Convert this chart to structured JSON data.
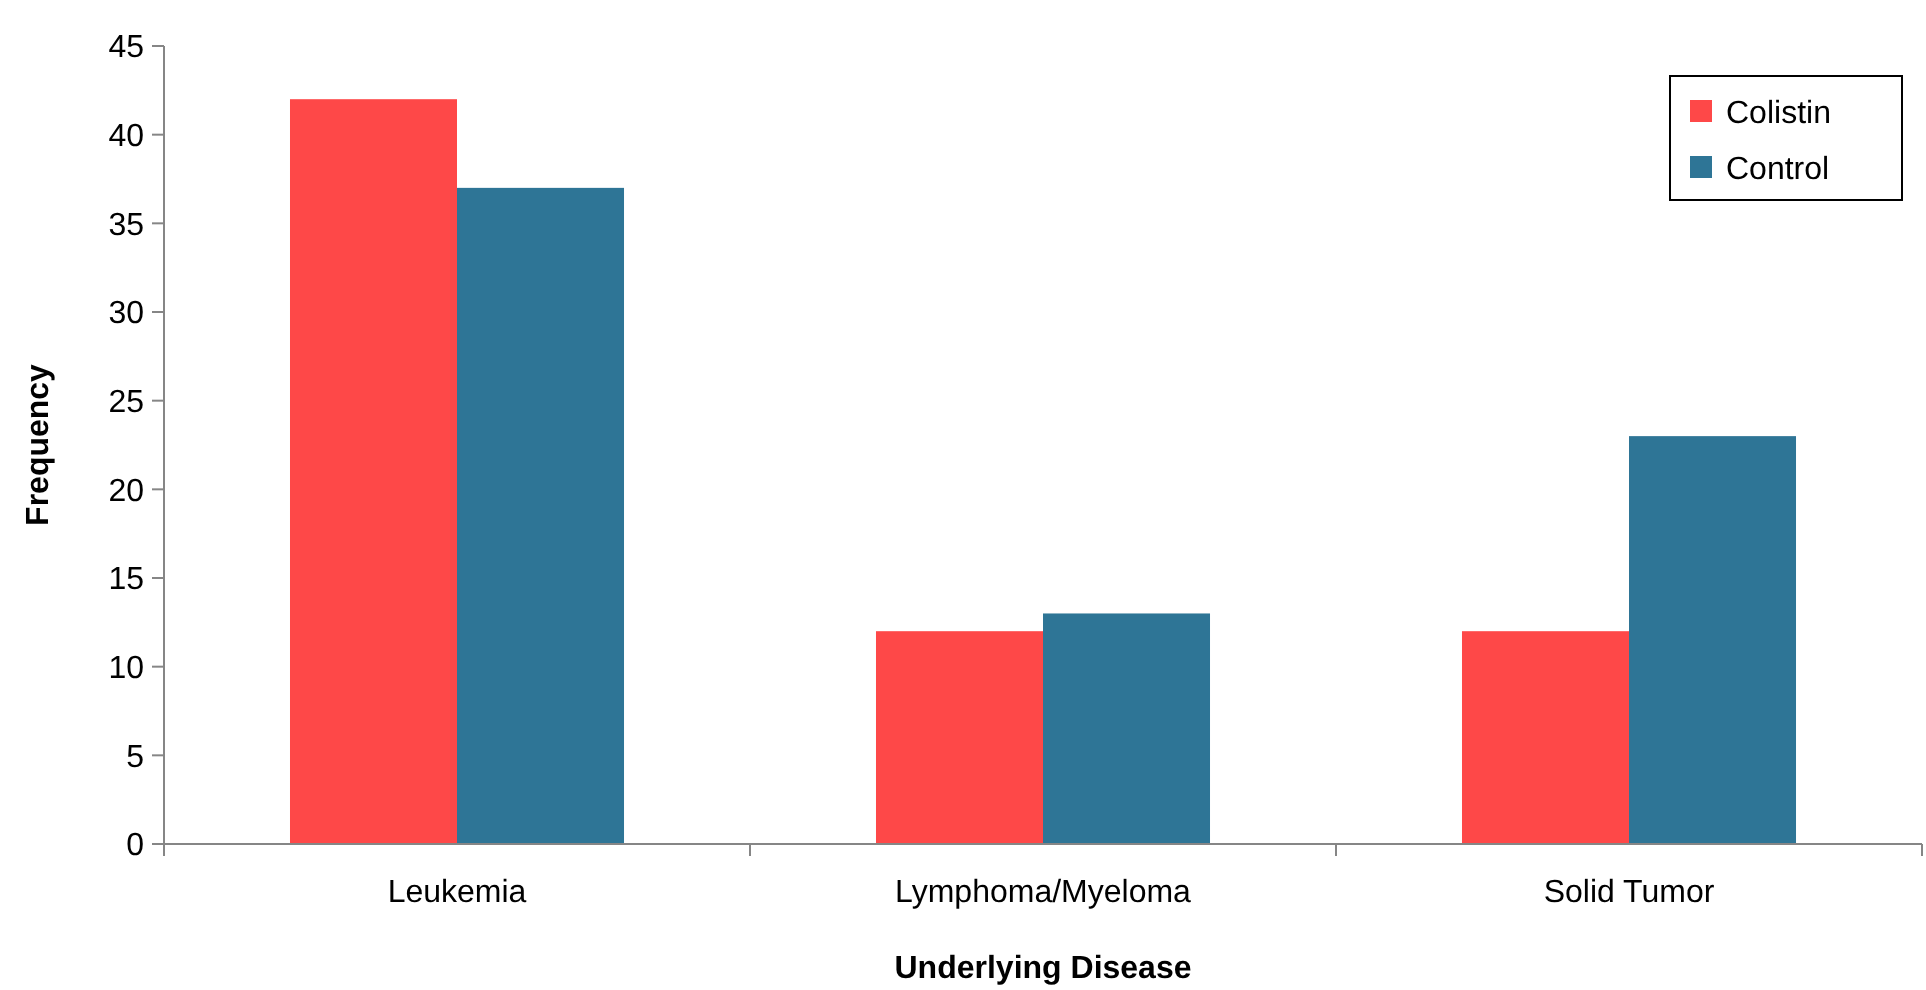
{
  "chart_data": {
    "type": "bar",
    "xlabel": "Underlying Disease",
    "ylabel": "Frequency",
    "categories": [
      "Leukemia",
      "Lymphoma/Myeloma",
      "Solid Tumor"
    ],
    "series": [
      {
        "name": "Colistin",
        "color": "#fe4848",
        "values": [
          42,
          12,
          12
        ]
      },
      {
        "name": "Control",
        "color": "#2e7596",
        "values": [
          37,
          13,
          23
        ]
      }
    ],
    "ylim": [
      0,
      45
    ],
    "yticks": [
      0,
      5,
      10,
      15,
      20,
      25,
      30,
      35,
      40,
      45
    ],
    "grid": false,
    "legend": "top right"
  }
}
